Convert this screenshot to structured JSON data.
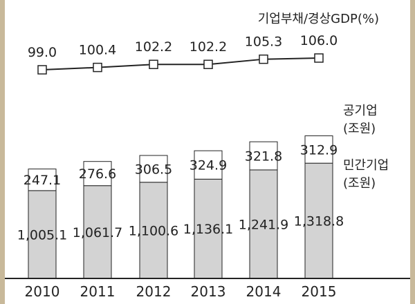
{
  "chart_data": {
    "type": "bar",
    "categories": [
      "2010",
      "2011",
      "2012",
      "2013",
      "2014",
      "2015"
    ],
    "series": [
      {
        "name": "민간기업\n(조원)",
        "values": [
          1005.1,
          1061.7,
          1100.6,
          1136.1,
          1241.9,
          1318.8
        ],
        "labels": [
          "1,005.1",
          "1,061.7",
          "1,100.6",
          "1,136.1",
          "1,241.9",
          "1,318.8"
        ],
        "color": "#d3d3d3"
      },
      {
        "name": "공기업\n(조원)",
        "values": [
          247.1,
          276.6,
          306.5,
          324.9,
          321.8,
          312.9
        ],
        "labels": [
          "247.1",
          "276.6",
          "306.5",
          "324.9",
          "321.8",
          "312.9"
        ],
        "color": "#ffffff"
      }
    ],
    "line": {
      "name": "기업부채/경상GDP(%)",
      "values": [
        99.0,
        100.4,
        102.2,
        102.2,
        105.3,
        106.0
      ],
      "labels": [
        "99.0",
        "100.4",
        "102.2",
        "102.2",
        "105.3",
        "106.0"
      ]
    },
    "stacked": true,
    "legend": "right",
    "grid": false
  },
  "colors": {
    "frame": "#c8b99a",
    "private": "#d3d3d3",
    "public": "#ffffff",
    "stroke": "#222222"
  }
}
